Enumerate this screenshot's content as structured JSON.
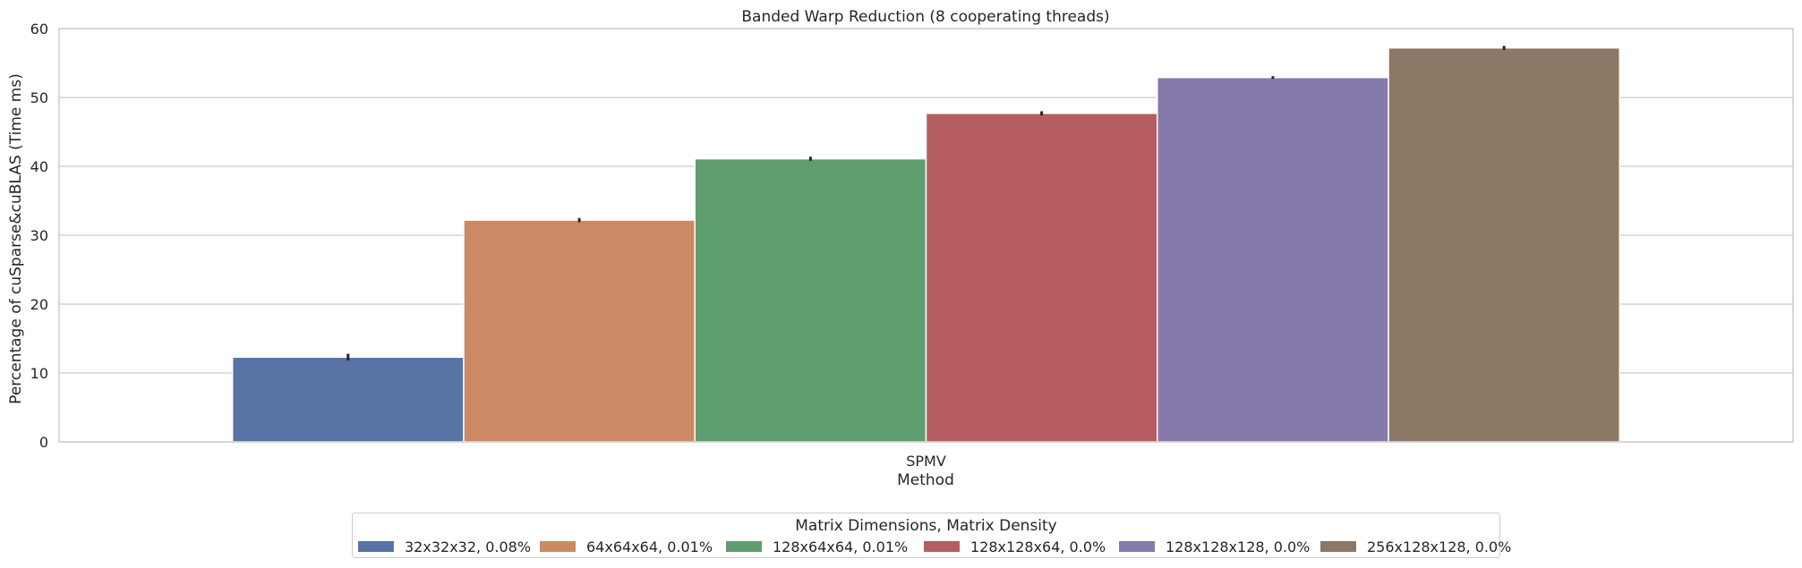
{
  "chart_data": {
    "type": "bar",
    "title": "Banded Warp Reduction (8 cooperating threads)",
    "xlabel": "Method",
    "ylabel": "Percentage of cuSparse&cuBLAS (Time ms)",
    "categories": [
      "SPMV"
    ],
    "ylim": [
      0,
      60
    ],
    "yticks": [
      0,
      10,
      20,
      30,
      40,
      50,
      60
    ],
    "grid": true,
    "legend": {
      "title": "Matrix Dimensions, Matrix Density",
      "placement": "bottom-center"
    },
    "series": [
      {
        "name": "32x32x32, 0.08%",
        "values": [
          12.3
        ],
        "error": [
          0.5
        ],
        "color": "#5874a6"
      },
      {
        "name": "64x64x64, 0.01%",
        "values": [
          32.2
        ],
        "error": [
          0.3
        ],
        "color": "#cc8963"
      },
      {
        "name": "128x64x64, 0.01%",
        "values": [
          41.1
        ],
        "error": [
          0.3
        ],
        "color": "#5f9e6e"
      },
      {
        "name": "128x128x64, 0.0%",
        "values": [
          47.7
        ],
        "error": [
          0.3
        ],
        "color": "#b55d60"
      },
      {
        "name": "128x128x128, 0.0%",
        "values": [
          52.9
        ],
        "error": [
          0.2
        ],
        "color": "#857aab"
      },
      {
        "name": "256x128x128, 0.0%",
        "values": [
          57.2
        ],
        "error": [
          0.3
        ],
        "color": "#8d7866"
      }
    ]
  }
}
